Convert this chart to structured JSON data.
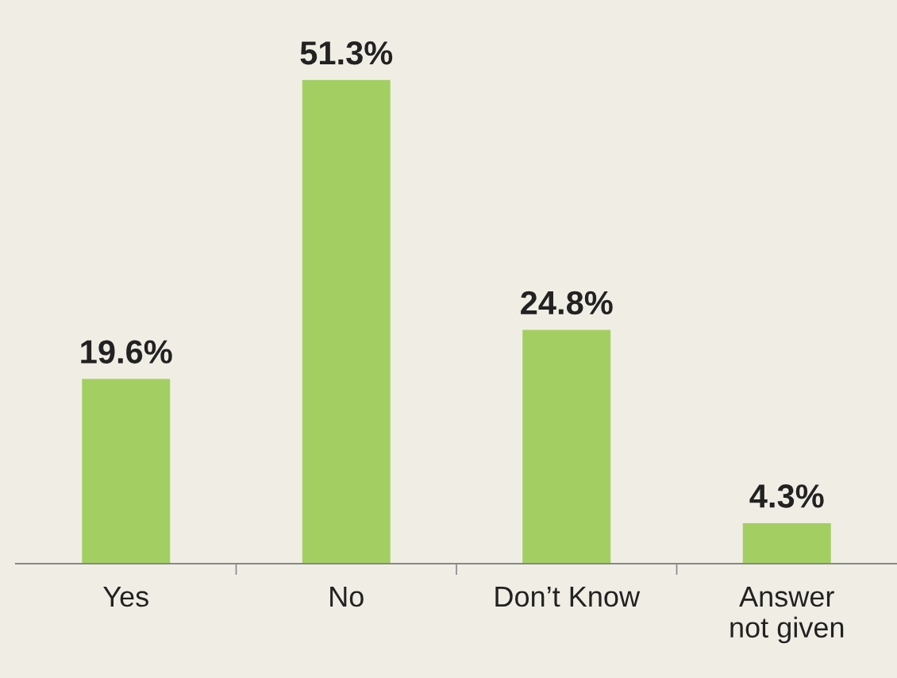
{
  "chart_data": {
    "type": "bar",
    "categories": [
      "Yes",
      "No",
      "Don’t Know",
      "Answer\nnot given"
    ],
    "values": [
      19.6,
      51.3,
      24.8,
      4.3
    ],
    "value_labels": [
      "19.6%",
      "51.3%",
      "24.8%",
      "4.3%"
    ],
    "color": "#a3cf62",
    "grid": false,
    "legend": false
  }
}
